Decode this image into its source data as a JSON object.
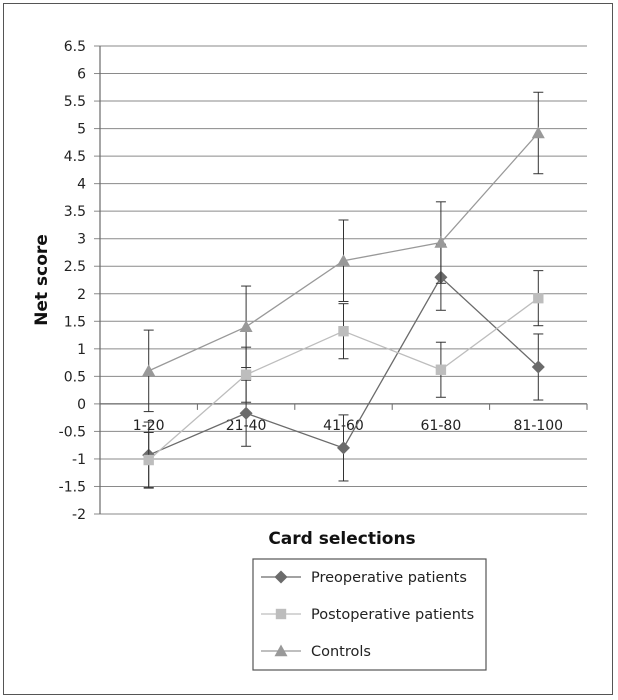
{
  "chart_data": {
    "type": "line",
    "title": "",
    "xlabel": "Card selections",
    "ylabel": "Net score",
    "categories": [
      "1-20",
      "21-40",
      "41-60",
      "61-80",
      "81-100"
    ],
    "ylim": [
      -2,
      6.5
    ],
    "ytick_step": 0.5,
    "grid": true,
    "legend_position": "bottom-center",
    "series": [
      {
        "name": "Preoperative patients",
        "marker": "diamond",
        "color": "#6b6b6b",
        "values": [
          -0.93,
          -0.17,
          -0.8,
          2.3,
          0.67
        ],
        "error": [
          0.6,
          0.6,
          0.6,
          0.6,
          0.6
        ]
      },
      {
        "name": "Postoperative patients",
        "marker": "square",
        "color": "#bdbdbd",
        "values": [
          -1.02,
          0.53,
          1.32,
          0.62,
          1.92
        ],
        "error": [
          0.5,
          0.5,
          0.5,
          0.5,
          0.5
        ]
      },
      {
        "name": "Controls",
        "marker": "triangle",
        "color": "#999999",
        "values": [
          0.6,
          1.4,
          2.6,
          2.93,
          4.92
        ],
        "error": [
          0.74,
          0.74,
          0.74,
          0.74,
          0.74
        ]
      }
    ]
  }
}
